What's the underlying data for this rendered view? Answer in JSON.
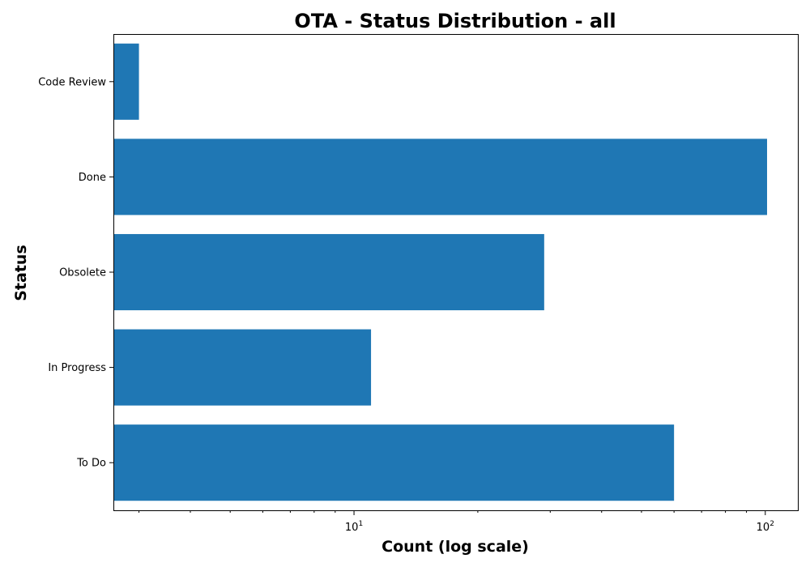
{
  "chart_data": {
    "type": "bar",
    "orientation": "horizontal",
    "title": "OTA - Status Distribution - all",
    "xlabel": "Count (log scale)",
    "ylabel": "Status",
    "x_scale": "log",
    "xlim": [
      2.6,
      120
    ],
    "x_major_ticks": [
      {
        "value": 10,
        "base": "10",
        "exp": "1"
      },
      {
        "value": 100,
        "base": "10",
        "exp": "2"
      }
    ],
    "categories": [
      "Code Review",
      "Done",
      "Obsolete",
      "In Progress",
      "To Do"
    ],
    "values": [
      3,
      101,
      29,
      11,
      60
    ],
    "bar_color": "#1f77b4",
    "grid": false,
    "legend": "none"
  }
}
